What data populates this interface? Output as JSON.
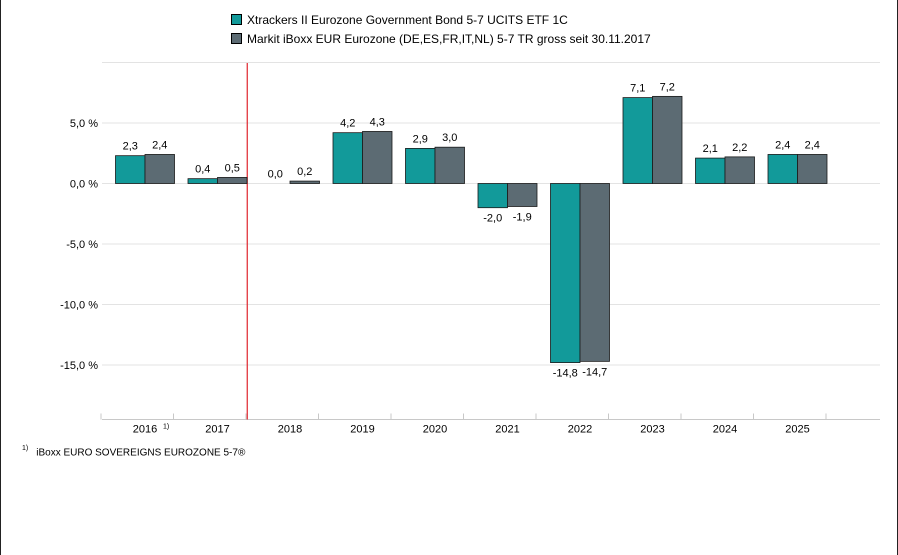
{
  "chart_data": {
    "type": "bar",
    "categories": [
      "2016",
      "2017",
      "2018",
      "2019",
      "2020",
      "2021",
      "2022",
      "2023",
      "2024",
      "2025"
    ],
    "category_footnote_marks": [
      "1)",
      "",
      "",
      "",
      "",
      "",
      "",
      "",
      "",
      ""
    ],
    "series": [
      {
        "name": "Xtrackers II Eurozone Government Bond 5-7 UCITS ETF 1C",
        "color": "#129a9a",
        "values": [
          2.3,
          0.4,
          null,
          4.2,
          2.9,
          -2.0,
          -14.8,
          7.1,
          2.1,
          2.4
        ],
        "labels": [
          "2,3",
          "0,4",
          "0,0",
          "4,2",
          "2,9",
          "-2,0",
          "-14,8",
          "7,1",
          "2,1",
          "2,4"
        ]
      },
      {
        "name": "Markit iBoxx EUR Eurozone (DE,ES,FR,IT,NL) 5-7 TR gross seit 30.11.2017",
        "color": "#5c6b73",
        "values": [
          2.4,
          0.5,
          0.2,
          4.3,
          3.0,
          -1.9,
          -14.7,
          7.2,
          2.2,
          2.4
        ],
        "labels": [
          "2,4",
          "0,5",
          "0,2",
          "4,3",
          "3,0",
          "-1,9",
          "-14,7",
          "7,2",
          "2,2",
          "2,4"
        ]
      }
    ],
    "ylim": [
      -19.5,
      10.0
    ],
    "yticks": [
      5.0,
      0.0,
      -5.0,
      -10.0,
      -15.0
    ],
    "ytick_labels": [
      "5,0 %",
      "0,0 %",
      "-5,0 %",
      "-10,0 %",
      "-15,0 %"
    ],
    "grid": true,
    "legend_position": "top",
    "marker_line": {
      "after_category": "2017",
      "color": "#e0242c"
    }
  },
  "footnote": {
    "mark": "1)",
    "text": "iBoxx EURO SOVEREIGNS EUROZONE 5-7®"
  }
}
